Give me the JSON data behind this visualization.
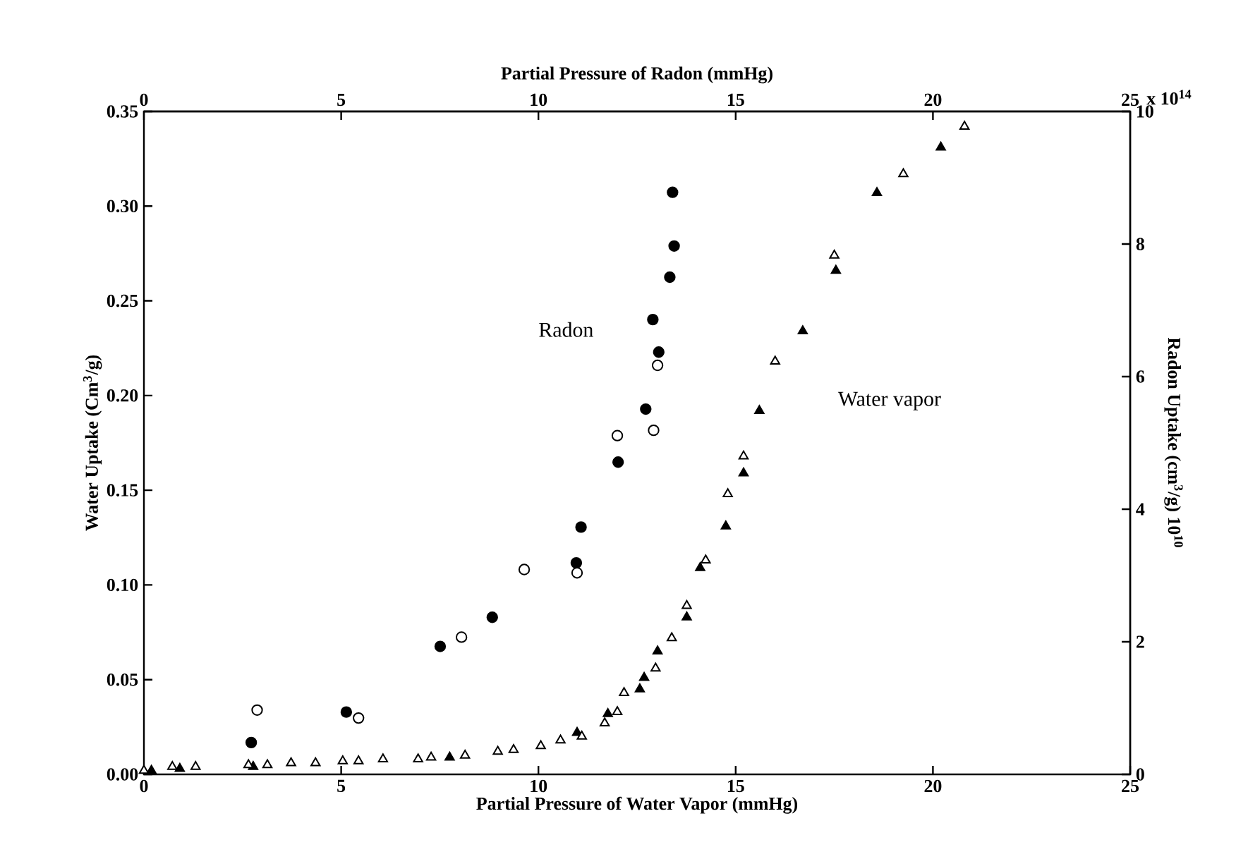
{
  "chart_data": {
    "type": "scatter",
    "xlabel": "Partial Pressure of Water Vapor (mmHg)",
    "ylabel": "Water Uptake (Cm$^{3}$/g)",
    "x2label": "Partial Pressure of Radon (mmHg)",
    "y2label": "Radon Uptake (cm$^{3}$/g) 10$^{10}$",
    "xlim": [
      0,
      25
    ],
    "xticks": [
      0,
      5,
      10,
      15,
      20,
      25
    ],
    "ylim": [
      0,
      0.35
    ],
    "yticks": [
      {
        "value": 0,
        "label": "0.00"
      },
      {
        "value": 0.05,
        "label": "0.05"
      },
      {
        "value": 0.1,
        "label": "0.10"
      },
      {
        "value": 0.15,
        "label": "0.15"
      },
      {
        "value": 0.2,
        "label": "0.20"
      },
      {
        "value": 0.25,
        "label": "0.25"
      },
      {
        "value": 0.3,
        "label": "0.30"
      },
      {
        "value": 0.35,
        "label": "0.35"
      }
    ],
    "x2lim": [
      0,
      25
    ],
    "x2ticks": [
      0,
      5,
      10,
      15,
      20,
      25
    ],
    "y2lim": [
      0,
      10
    ],
    "y2ticks": [
      0,
      2,
      4,
      6,
      8,
      10
    ],
    "annotations": [
      "Radon",
      "Water vapor",
      "x 10$^{14}$"
    ],
    "series": [
      {
        "color": "#000000",
        "marker": "circle",
        "axis": "y2",
        "x": [
          2.72,
          5.13,
          7.51,
          8.83,
          10.96,
          11.08,
          12.02,
          12.72,
          12.9,
          13.05,
          13.33,
          13.44,
          13.4
        ],
        "values": [
          0.48,
          0.94,
          1.93,
          2.37,
          3.19,
          3.73,
          4.71,
          5.51,
          6.86,
          6.37,
          7.5,
          7.97,
          8.78
        ]
      },
      {
        "color": "#ffffff",
        "marker": "circle",
        "axis": "y2",
        "x": [
          2.87,
          5.44,
          8.05,
          9.64,
          10.98,
          12.0,
          12.92,
          13.02
        ],
        "values": [
          0.97,
          0.85,
          2.07,
          3.09,
          3.04,
          5.11,
          5.19,
          6.17
        ]
      },
      {
        "color": "#000000",
        "marker": "triangle",
        "x": [
          0.19,
          0.91,
          2.77,
          7.75,
          10.98,
          11.76,
          12.57,
          12.68,
          13.02,
          13.76,
          14.1,
          14.75,
          15.2,
          15.6,
          16.7,
          17.54,
          18.58,
          20.2
        ],
        "values": [
          0.002,
          0.003,
          0.004,
          0.009,
          0.022,
          0.032,
          0.045,
          0.051,
          0.065,
          0.083,
          0.109,
          0.131,
          0.159,
          0.192,
          0.234,
          0.266,
          0.307,
          0.331
        ]
      },
      {
        "color": "#ffffff",
        "marker": "triangle",
        "x": [
          0.0,
          0.72,
          1.31,
          2.65,
          3.13,
          3.73,
          4.35,
          5.04,
          5.44,
          6.06,
          6.95,
          7.28,
          8.14,
          8.97,
          9.37,
          10.06,
          10.56,
          11.1,
          11.68,
          12.0,
          12.17,
          12.97,
          13.38,
          13.76,
          14.24,
          14.8,
          15.2,
          16.0,
          17.5,
          19.25,
          20.8
        ],
        "values": [
          0.002,
          0.004,
          0.004,
          0.005,
          0.005,
          0.006,
          0.006,
          0.007,
          0.007,
          0.008,
          0.008,
          0.009,
          0.01,
          0.012,
          0.013,
          0.015,
          0.018,
          0.02,
          0.027,
          0.033,
          0.043,
          0.056,
          0.072,
          0.089,
          0.113,
          0.148,
          0.168,
          0.218,
          0.274,
          0.317,
          0.342
        ]
      }
    ]
  }
}
